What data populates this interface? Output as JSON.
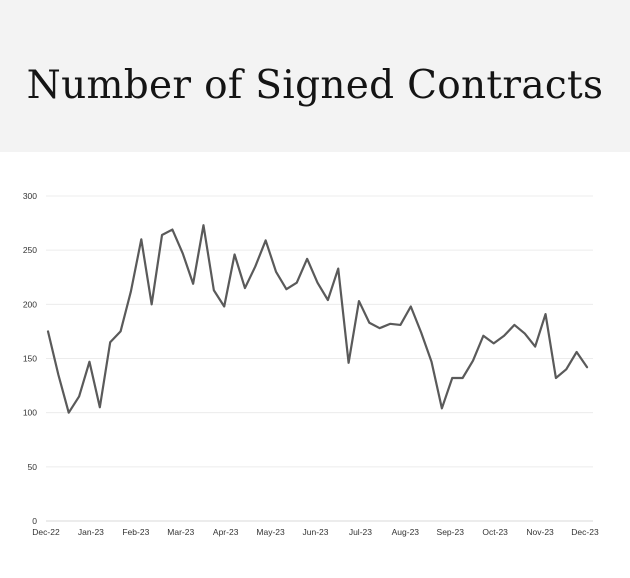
{
  "chart_data": {
    "type": "line",
    "title": "Number of Signed Contracts",
    "xlabel": "",
    "ylabel": "",
    "ylim": [
      0,
      300
    ],
    "yticks": [
      0,
      50,
      100,
      150,
      200,
      250,
      300
    ],
    "xticks": [
      "Dec-22",
      "Jan-23",
      "Feb-23",
      "Mar-23",
      "Apr-23",
      "May-23",
      "Jun-23",
      "Jul-23",
      "Aug-23",
      "Sep-23",
      "Oct-23",
      "Nov-23",
      "Dec-23"
    ],
    "grid": true,
    "legend": "none",
    "line_color": "#5a5a5a",
    "series": [
      {
        "values": [
          175,
          135,
          100,
          115,
          147,
          105,
          165,
          175,
          212,
          260,
          200,
          264,
          269,
          247,
          219,
          273,
          213,
          198,
          246,
          215,
          235,
          259,
          230,
          214,
          220,
          242,
          220,
          204,
          233,
          146,
          203,
          183,
          178,
          182,
          181,
          198,
          174,
          147,
          104,
          132,
          132,
          148,
          171,
          164,
          171,
          181,
          173,
          161,
          191,
          132,
          140,
          156,
          142
        ]
      }
    ]
  }
}
